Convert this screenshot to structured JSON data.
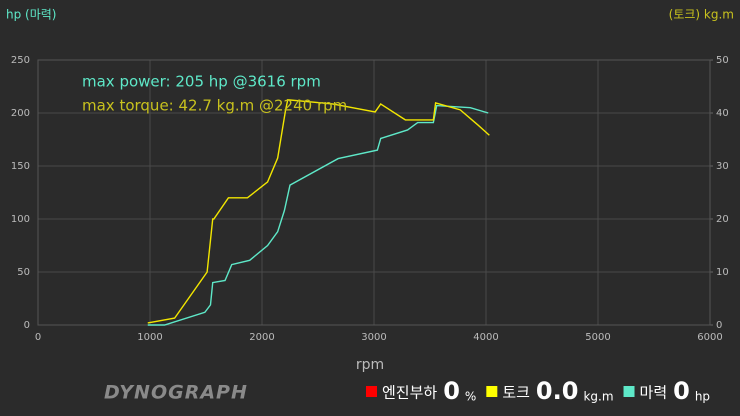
{
  "chart_data": {
    "type": "line",
    "y_label": "hp (마력)",
    "y2_label": "(토크) kg.m",
    "x_label": "rpm",
    "annotations": [
      {
        "text": "max power: 205 hp @3616 rpm",
        "color": "#5ee8c8"
      },
      {
        "text": "max torque: 42.7 kg.m @2240 rpm",
        "color": "#c8c21e"
      }
    ],
    "xlim": [
      0,
      6000
    ],
    "xticks": [
      0,
      1000,
      2000,
      3000,
      4000,
      5000,
      6000
    ],
    "ylim": [
      0,
      250
    ],
    "yticks": [
      0,
      50,
      100,
      150,
      200,
      250
    ],
    "y2lim": [
      0,
      50
    ],
    "y2ticks": [
      0,
      10,
      20,
      30,
      40,
      50
    ],
    "grid": true,
    "series": [
      {
        "name": "마력",
        "color": "#5ee8c8",
        "x": [
          980,
          1130,
          1490,
          1540,
          1560,
          1670,
          1730,
          1890,
          2050,
          2140,
          2200,
          2250,
          2680,
          3030,
          3060,
          3300,
          3390,
          3530,
          3560,
          3860,
          4020
        ],
        "values": [
          0,
          0,
          12,
          19,
          40,
          42,
          57,
          61,
          75,
          88,
          108,
          132,
          157,
          165,
          176,
          184,
          191,
          191,
          207,
          205,
          200
        ]
      },
      {
        "name": "토크",
        "color": "#f2e600",
        "axis": "y2",
        "x": [
          980,
          1220,
          1510,
          1560,
          1570,
          1700,
          1870,
          2050,
          2140,
          2210,
          2230,
          2630,
          3010,
          3060,
          3280,
          3530,
          3550,
          3770,
          3930,
          4030
        ],
        "values": [
          0.4,
          1.3,
          10,
          20,
          20,
          24,
          24,
          27,
          31.5,
          40.5,
          42.5,
          41.7,
          40.2,
          41.7,
          38.7,
          38.7,
          41.9,
          40.6,
          37.7,
          35.8
        ]
      }
    ]
  },
  "footer": {
    "logo": "DYNOGRAPH",
    "readouts": [
      {
        "name": "엔진부하",
        "value": "0",
        "unit": "%",
        "color": "#ff0000"
      },
      {
        "name": "토크",
        "value": "0.0",
        "unit": "kg.m",
        "color": "#ffff00"
      },
      {
        "name": "마력",
        "value": "0",
        "unit": "hp",
        "color": "#5ee8c8"
      }
    ]
  }
}
